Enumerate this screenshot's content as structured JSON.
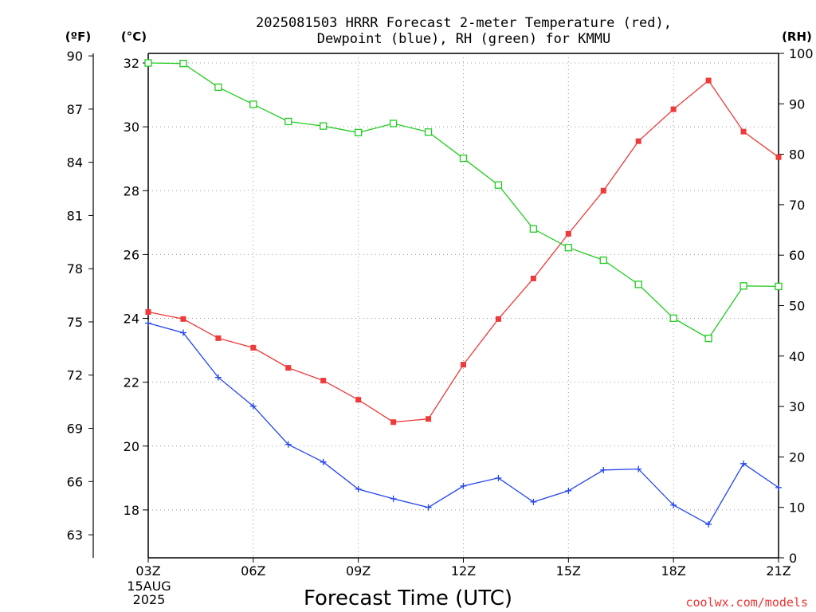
{
  "chart_data": {
    "type": "line",
    "title_lines": [
      "2025081503 HRRR Forecast 2-meter Temperature (red),",
      "Dewpoint (blue), RH (green) for KMMU"
    ],
    "xlabel": "Forecast Time (UTC)",
    "x": [
      "03Z",
      "04Z",
      "05Z",
      "06Z",
      "07Z",
      "08Z",
      "09Z",
      "10Z",
      "11Z",
      "12Z",
      "13Z",
      "14Z",
      "15Z",
      "16Z",
      "17Z",
      "18Z",
      "19Z",
      "20Z",
      "21Z"
    ],
    "x_ticks": [
      "03Z",
      "06Z",
      "09Z",
      "12Z",
      "15Z",
      "18Z",
      "21Z"
    ],
    "date_label": [
      "15AUG",
      "2025"
    ],
    "axes": {
      "celsius": {
        "label": "(°C)",
        "ylim": [
          16.5,
          32.3
        ],
        "ticks": [
          18,
          20,
          22,
          24,
          26,
          28,
          30,
          32
        ]
      },
      "fahrenheit": {
        "label": "(ºF)",
        "ticks": [
          63,
          66,
          69,
          72,
          75,
          78,
          81,
          84,
          87,
          90
        ]
      },
      "rh": {
        "label": "(RH)",
        "ylim": [
          0,
          100
        ],
        "ticks": [
          0,
          10,
          20,
          30,
          40,
          50,
          60,
          70,
          80,
          90,
          100
        ]
      }
    },
    "grid": true,
    "series": [
      {
        "name": "Temperature",
        "axis": "celsius",
        "color": "#ee3a3a",
        "marker": "filled-square",
        "values": [
          24.2,
          23.98,
          23.38,
          23.08,
          22.45,
          22.05,
          21.45,
          20.75,
          20.85,
          22.55,
          23.98,
          25.25,
          26.65,
          28.0,
          29.55,
          30.55,
          31.45,
          29.85,
          29.05
        ]
      },
      {
        "name": "Dewpoint",
        "axis": "celsius",
        "color": "#2244ee",
        "marker": "plus",
        "values": [
          23.85,
          23.55,
          22.15,
          21.25,
          20.05,
          19.5,
          18.65,
          18.35,
          18.08,
          18.75,
          19.0,
          18.25,
          18.6,
          19.25,
          19.28,
          18.15,
          17.55,
          19.45,
          18.7
        ]
      },
      {
        "name": "RH",
        "axis": "rh",
        "color": "#22cc22",
        "marker": "open-square",
        "values": [
          98.1,
          98.0,
          93.3,
          89.9,
          86.5,
          85.6,
          84.3,
          86.1,
          84.4,
          79.2,
          73.9,
          65.2,
          61.5,
          59.0,
          54.2,
          47.5,
          43.5,
          53.9,
          53.8
        ]
      }
    ]
  },
  "watermark": "coolwx.com/models"
}
